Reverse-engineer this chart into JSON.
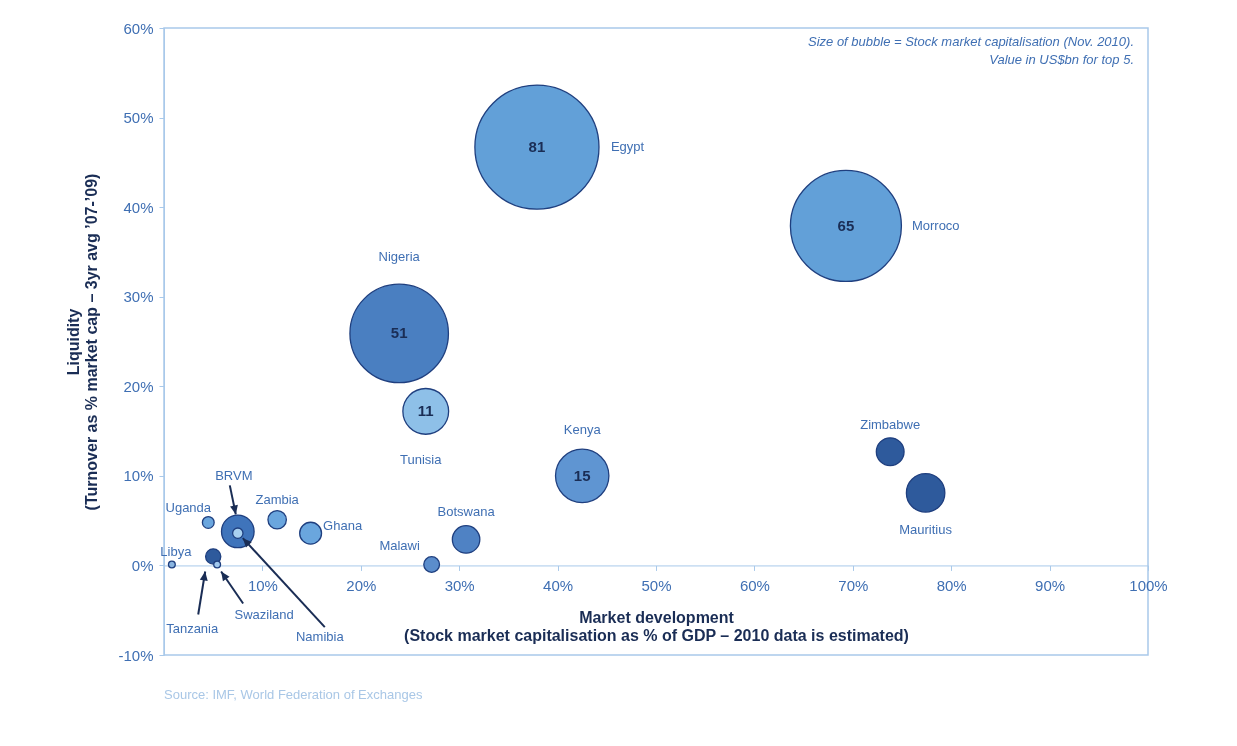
{
  "chart_data": {
    "type": "bubble",
    "xlabel": "Market development\n(Stock market capitalisation as % of GDP – 2010 data is estimated)",
    "ylabel": "Liquidity\n(Turnover as % market cap – 3yr avg ’07-’09)",
    "xlim": [
      0,
      100
    ],
    "ylim": [
      -10,
      60
    ],
    "xticks": [
      {
        "value": 10,
        "label": "10%"
      },
      {
        "value": 20,
        "label": "20%"
      },
      {
        "value": 30,
        "label": "30%"
      },
      {
        "value": 40,
        "label": "40%"
      },
      {
        "value": 50,
        "label": "50%"
      },
      {
        "value": 60,
        "label": "60%"
      },
      {
        "value": 70,
        "label": "70%"
      },
      {
        "value": 80,
        "label": "80%"
      },
      {
        "value": 90,
        "label": "90%"
      },
      {
        "value": 100,
        "label": "100%"
      }
    ],
    "yticks": [
      {
        "value": -10,
        "label": "-10%"
      },
      {
        "value": 0,
        "label": "0%"
      },
      {
        "value": 10,
        "label": "10%"
      },
      {
        "value": 20,
        "label": "20%"
      },
      {
        "value": 30,
        "label": "30%"
      },
      {
        "value": 40,
        "label": "40%"
      },
      {
        "value": 50,
        "label": "50%"
      },
      {
        "value": 60,
        "label": "60%"
      }
    ],
    "series": [
      {
        "name": "Egypt",
        "color": "#62a0d8",
        "x": [
          37.9
        ],
        "values": [
          46.7
        ],
        "sizes": [
          1
        ]
      },
      {
        "name": "Morroco",
        "color": "#62a0d8",
        "x": [
          69.3
        ],
        "values": [
          37.9
        ],
        "sizes": [
          0.8
        ]
      },
      {
        "name": "Nigeria",
        "color": "#4a7fc1",
        "x": [
          23.9
        ],
        "values": [
          25.9
        ],
        "sizes": [
          0.63
        ]
      },
      {
        "name": "Tunisia",
        "color": "#8ec0e8",
        "x": [
          26.6
        ],
        "values": [
          17.2
        ],
        "sizes": [
          0.136
        ]
      },
      {
        "name": "Kenya",
        "color": "#5f95d2",
        "x": [
          42.5
        ],
        "values": [
          10.0
        ],
        "sizes": [
          0.185
        ]
      },
      {
        "name": "Zimbabwe",
        "color": "#2e5a9c",
        "x": [
          73.8
        ],
        "values": [
          12.7
        ],
        "sizes": [
          0.05
        ]
      },
      {
        "name": "Mauritius",
        "color": "#2e5a9c",
        "x": [
          77.4
        ],
        "values": [
          8.1
        ],
        "sizes": [
          0.096
        ]
      },
      {
        "name": "Botswana",
        "color": "#4f82c4",
        "x": [
          30.7
        ],
        "values": [
          2.9
        ],
        "sizes": [
          0.049
        ]
      },
      {
        "name": "Malawi",
        "color": "#5b8dcc",
        "x": [
          27.2
        ],
        "values": [
          0.1
        ],
        "sizes": [
          0.016
        ]
      },
      {
        "name": "Ghana",
        "color": "#6aa6de",
        "x": [
          14.9
        ],
        "values": [
          3.6
        ],
        "sizes": [
          0.031
        ]
      },
      {
        "name": "Zambia",
        "color": "#6aa6de",
        "x": [
          11.5
        ],
        "values": [
          5.1
        ],
        "sizes": [
          0.022
        ]
      },
      {
        "name": "BRVM",
        "color": "#3f74bb",
        "x": [
          7.5
        ],
        "values": [
          3.8
        ],
        "sizes": [
          0.069
        ]
      },
      {
        "name": "Namibia",
        "color": "#a8d0f0",
        "x": [
          7.5
        ],
        "values": [
          3.6
        ],
        "sizes": [
          0.007
        ]
      },
      {
        "name": "Uganda",
        "color": "#6aa6de",
        "x": [
          4.5
        ],
        "values": [
          4.8
        ],
        "sizes": [
          0.009
        ]
      },
      {
        "name": "Tanzania",
        "color": "#2e5a9c",
        "x": [
          5.0
        ],
        "values": [
          1.0
        ],
        "sizes": [
          0.015
        ]
      },
      {
        "name": "Swaziland",
        "color": "#a0c8ee",
        "x": [
          5.4
        ],
        "values": [
          0.1
        ],
        "sizes": [
          0.003
        ]
      },
      {
        "name": "Libya",
        "color": "#8ab5e0",
        "x": [
          0.8
        ],
        "values": [
          0.1
        ],
        "sizes": [
          0.003
        ]
      }
    ],
    "annotations": [
      "Size of bubble = Stock market capitalisation (Nov. 2010).",
      "Value in US$bn for top 5.",
      "Source: IMF, World Federation of Exchanges",
      {
        "text": "81",
        "x": 37.9,
        "y": 46.7
      },
      {
        "text": "65",
        "x": 69.3,
        "y": 37.9
      },
      {
        "text": "51",
        "x": 23.9,
        "y": 25.9
      },
      {
        "text": "11",
        "x": 26.6,
        "y": 17.2
      },
      {
        "text": "15",
        "x": 42.5,
        "y": 10.0
      }
    ]
  }
}
